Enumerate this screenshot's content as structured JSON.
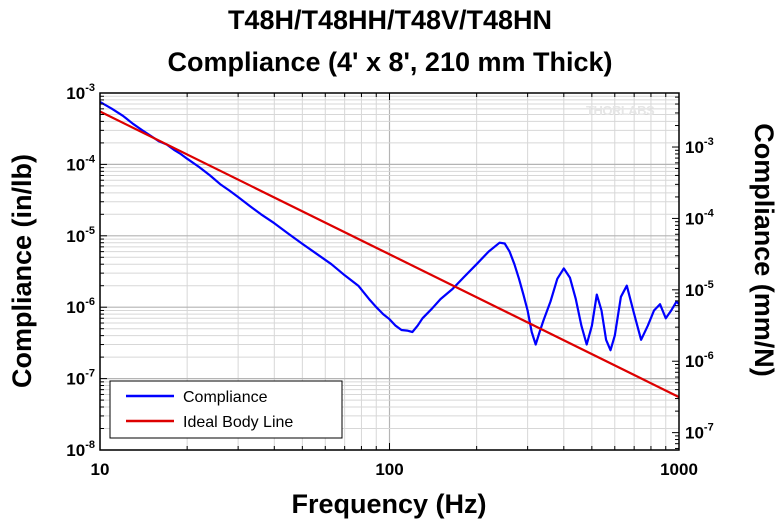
{
  "chart_data": {
    "type": "line",
    "title": [
      "T48H/T48HH/T48V/T48HN",
      "Compliance (4' x 8', 210 mm Thick)"
    ],
    "xlabel": "Frequency (Hz)",
    "ylabel": "Compliance (in/lb)",
    "ylabel_right": "Compliance (mm/N)",
    "xscale": "log",
    "yscale": "log",
    "xlim": [
      10,
      1000
    ],
    "ylim": [
      1e-08,
      0.001
    ],
    "ylim_right": [
      5.71e-08,
      0.00571
    ],
    "x_ticks": [
      {
        "value": 10,
        "label": "10"
      },
      {
        "value": 100,
        "label": "100"
      },
      {
        "value": 1000,
        "label": "1000"
      }
    ],
    "y_ticks": [
      {
        "value": 0.001,
        "base": "10",
        "exp": "-3"
      },
      {
        "value": 0.0001,
        "base": "10",
        "exp": "-4"
      },
      {
        "value": 1e-05,
        "base": "10",
        "exp": "-5"
      },
      {
        "value": 1e-06,
        "base": "10",
        "exp": "-6"
      },
      {
        "value": 1e-07,
        "base": "10",
        "exp": "-7"
      },
      {
        "value": 1e-08,
        "base": "10",
        "exp": "-8"
      }
    ],
    "y_ticks_right": [
      {
        "value": 0.001,
        "base": "10",
        "exp": "-3"
      },
      {
        "value": 0.0001,
        "base": "10",
        "exp": "-4"
      },
      {
        "value": 1e-05,
        "base": "10",
        "exp": "-5"
      },
      {
        "value": 1e-06,
        "base": "10",
        "exp": "-6"
      },
      {
        "value": 1e-07,
        "base": "10",
        "exp": "-7"
      }
    ],
    "grid": true,
    "legend_position": "bottom-left",
    "watermark": "THORLABS",
    "series": [
      {
        "name": "Compliance",
        "color": "#0000ff",
        "x": [
          10,
          11,
          12,
          13,
          14,
          15,
          16,
          17,
          18,
          19,
          20,
          22,
          24,
          26,
          28,
          30,
          33,
          36,
          40,
          45,
          50,
          56,
          63,
          70,
          78,
          85,
          90,
          95,
          100,
          105,
          110,
          115,
          120,
          125,
          130,
          140,
          150,
          165,
          180,
          200,
          220,
          240,
          250,
          260,
          270,
          280,
          290,
          300,
          310,
          320,
          330,
          340,
          360,
          380,
          400,
          420,
          440,
          460,
          480,
          500,
          520,
          540,
          560,
          580,
          600,
          630,
          660,
          700,
          740,
          780,
          820,
          860,
          900,
          940,
          980,
          1000
        ],
        "values": [
          0.00075,
          0.0006,
          0.00048,
          0.00037,
          0.0003,
          0.00025,
          0.00021,
          0.00019,
          0.00016,
          0.00014,
          0.00012,
          9.2e-05,
          7e-05,
          5.3e-05,
          4.3e-05,
          3.5e-05,
          2.6e-05,
          2e-05,
          1.5e-05,
          1.05e-05,
          7.7e-06,
          5.6e-06,
          4e-06,
          2.8e-06,
          2e-06,
          1.3e-06,
          1e-06,
          8e-07,
          6.8e-07,
          5.5e-07,
          4.8e-07,
          4.7e-07,
          4.5e-07,
          5.5e-07,
          7e-07,
          9.5e-07,
          1.3e-06,
          1.8e-06,
          2.6e-06,
          4e-06,
          6e-06,
          8e-06,
          7.8e-06,
          6e-06,
          4e-06,
          2.5e-06,
          1.5e-06,
          9e-07,
          4.5e-07,
          3e-07,
          4.5e-07,
          6.5e-07,
          1.2e-06,
          2.5e-06,
          3.5e-06,
          2.6e-06,
          1.3e-06,
          5.5e-07,
          3e-07,
          5.5e-07,
          1.5e-06,
          9e-07,
          3.5e-07,
          2.5e-07,
          4e-07,
          1.4e-06,
          2e-06,
          8e-07,
          3.5e-07,
          5.5e-07,
          9e-07,
          1.1e-06,
          7e-07,
          9e-07,
          1.2e-06,
          1.1e-06
        ]
      },
      {
        "name": "Ideal Body Line",
        "color": "#dd0000",
        "x": [
          10,
          1000
        ],
        "values": [
          0.00055,
          5.5e-08
        ]
      }
    ]
  }
}
